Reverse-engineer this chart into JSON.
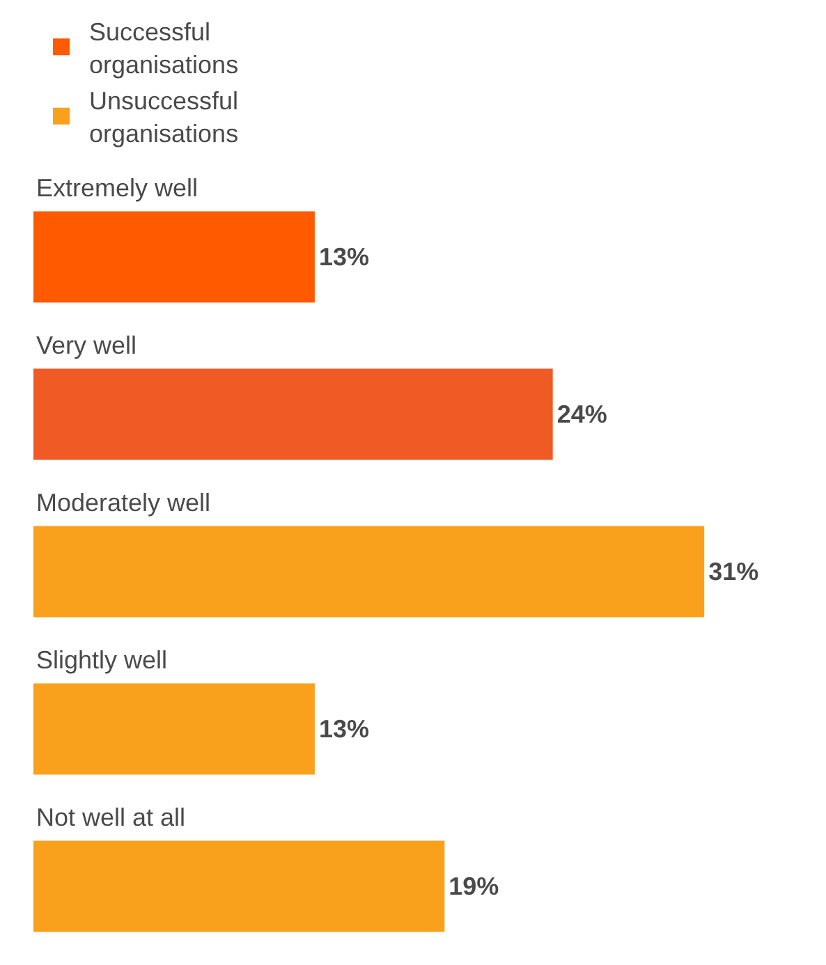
{
  "chart_data": {
    "type": "bar",
    "orientation": "horizontal",
    "categories": [
      "Extremely well",
      "Very well",
      "Moderately well",
      "Slightly well",
      "Not well at all"
    ],
    "series": [
      {
        "name": "Successful organisations",
        "color": "#ff5a00",
        "colors": [
          "#ff5a00",
          "#f05a24",
          null,
          null,
          null
        ],
        "values": [
          13,
          24,
          null,
          null,
          null
        ],
        "value_labels": [
          "13%",
          "24%",
          null,
          null,
          null
        ]
      },
      {
        "name": "Unsuccessful organisations",
        "color": "#f9a11d",
        "colors": [
          null,
          null,
          "#f9a11d",
          "#f9a11d",
          "#f9a11d"
        ],
        "values": [
          null,
          null,
          31,
          13,
          19
        ],
        "value_labels": [
          null,
          null,
          "31%",
          "13%",
          "19%"
        ]
      }
    ],
    "legend": "top left"
  }
}
